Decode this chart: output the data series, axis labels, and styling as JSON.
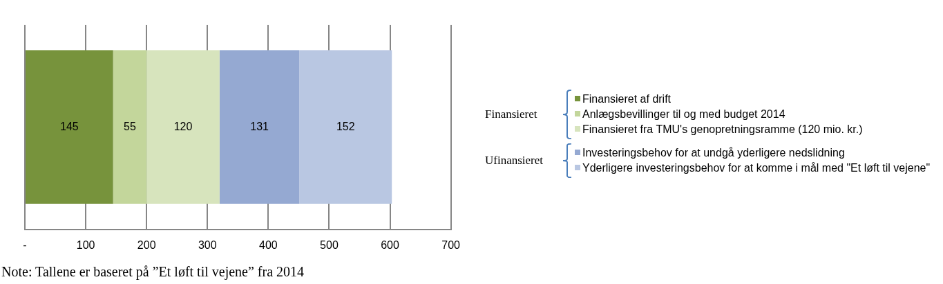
{
  "chart_data": {
    "type": "bar",
    "orientation": "horizontal",
    "stacked": true,
    "categories": [
      null
    ],
    "series": [
      {
        "name": "Finansieret af drift",
        "color": "#77933c",
        "values": [
          145
        ]
      },
      {
        "name": "Anlægsbevillinger til og med budget 2014",
        "color": "#c3d69b",
        "values": [
          55
        ]
      },
      {
        "name": "Finansieret fra TMU's genopretningsramme (120 mio. kr.)",
        "color": "#d7e4bd",
        "values": [
          120
        ]
      },
      {
        "name": "Investeringsbehov for at undgå yderligere nedslidning",
        "color": "#95a9d2",
        "values": [
          131
        ]
      },
      {
        "name": "Yderligere investeringsbehov for at komme i mål med \"Et løft til vejene\"",
        "color": "#b9c7e2",
        "values": [
          152
        ]
      }
    ],
    "xlim": [
      0,
      700
    ],
    "xticks": [
      {
        "value": 0,
        "label": "-"
      },
      100,
      200,
      300,
      400,
      500,
      600,
      700
    ],
    "grid": "x",
    "legend": "right",
    "data_labels": true,
    "annotations": [
      "Finansieret",
      "Ufinansieret",
      "Note: Tallene er baseret på ”Et løft til vejene” fra 2014"
    ]
  }
}
